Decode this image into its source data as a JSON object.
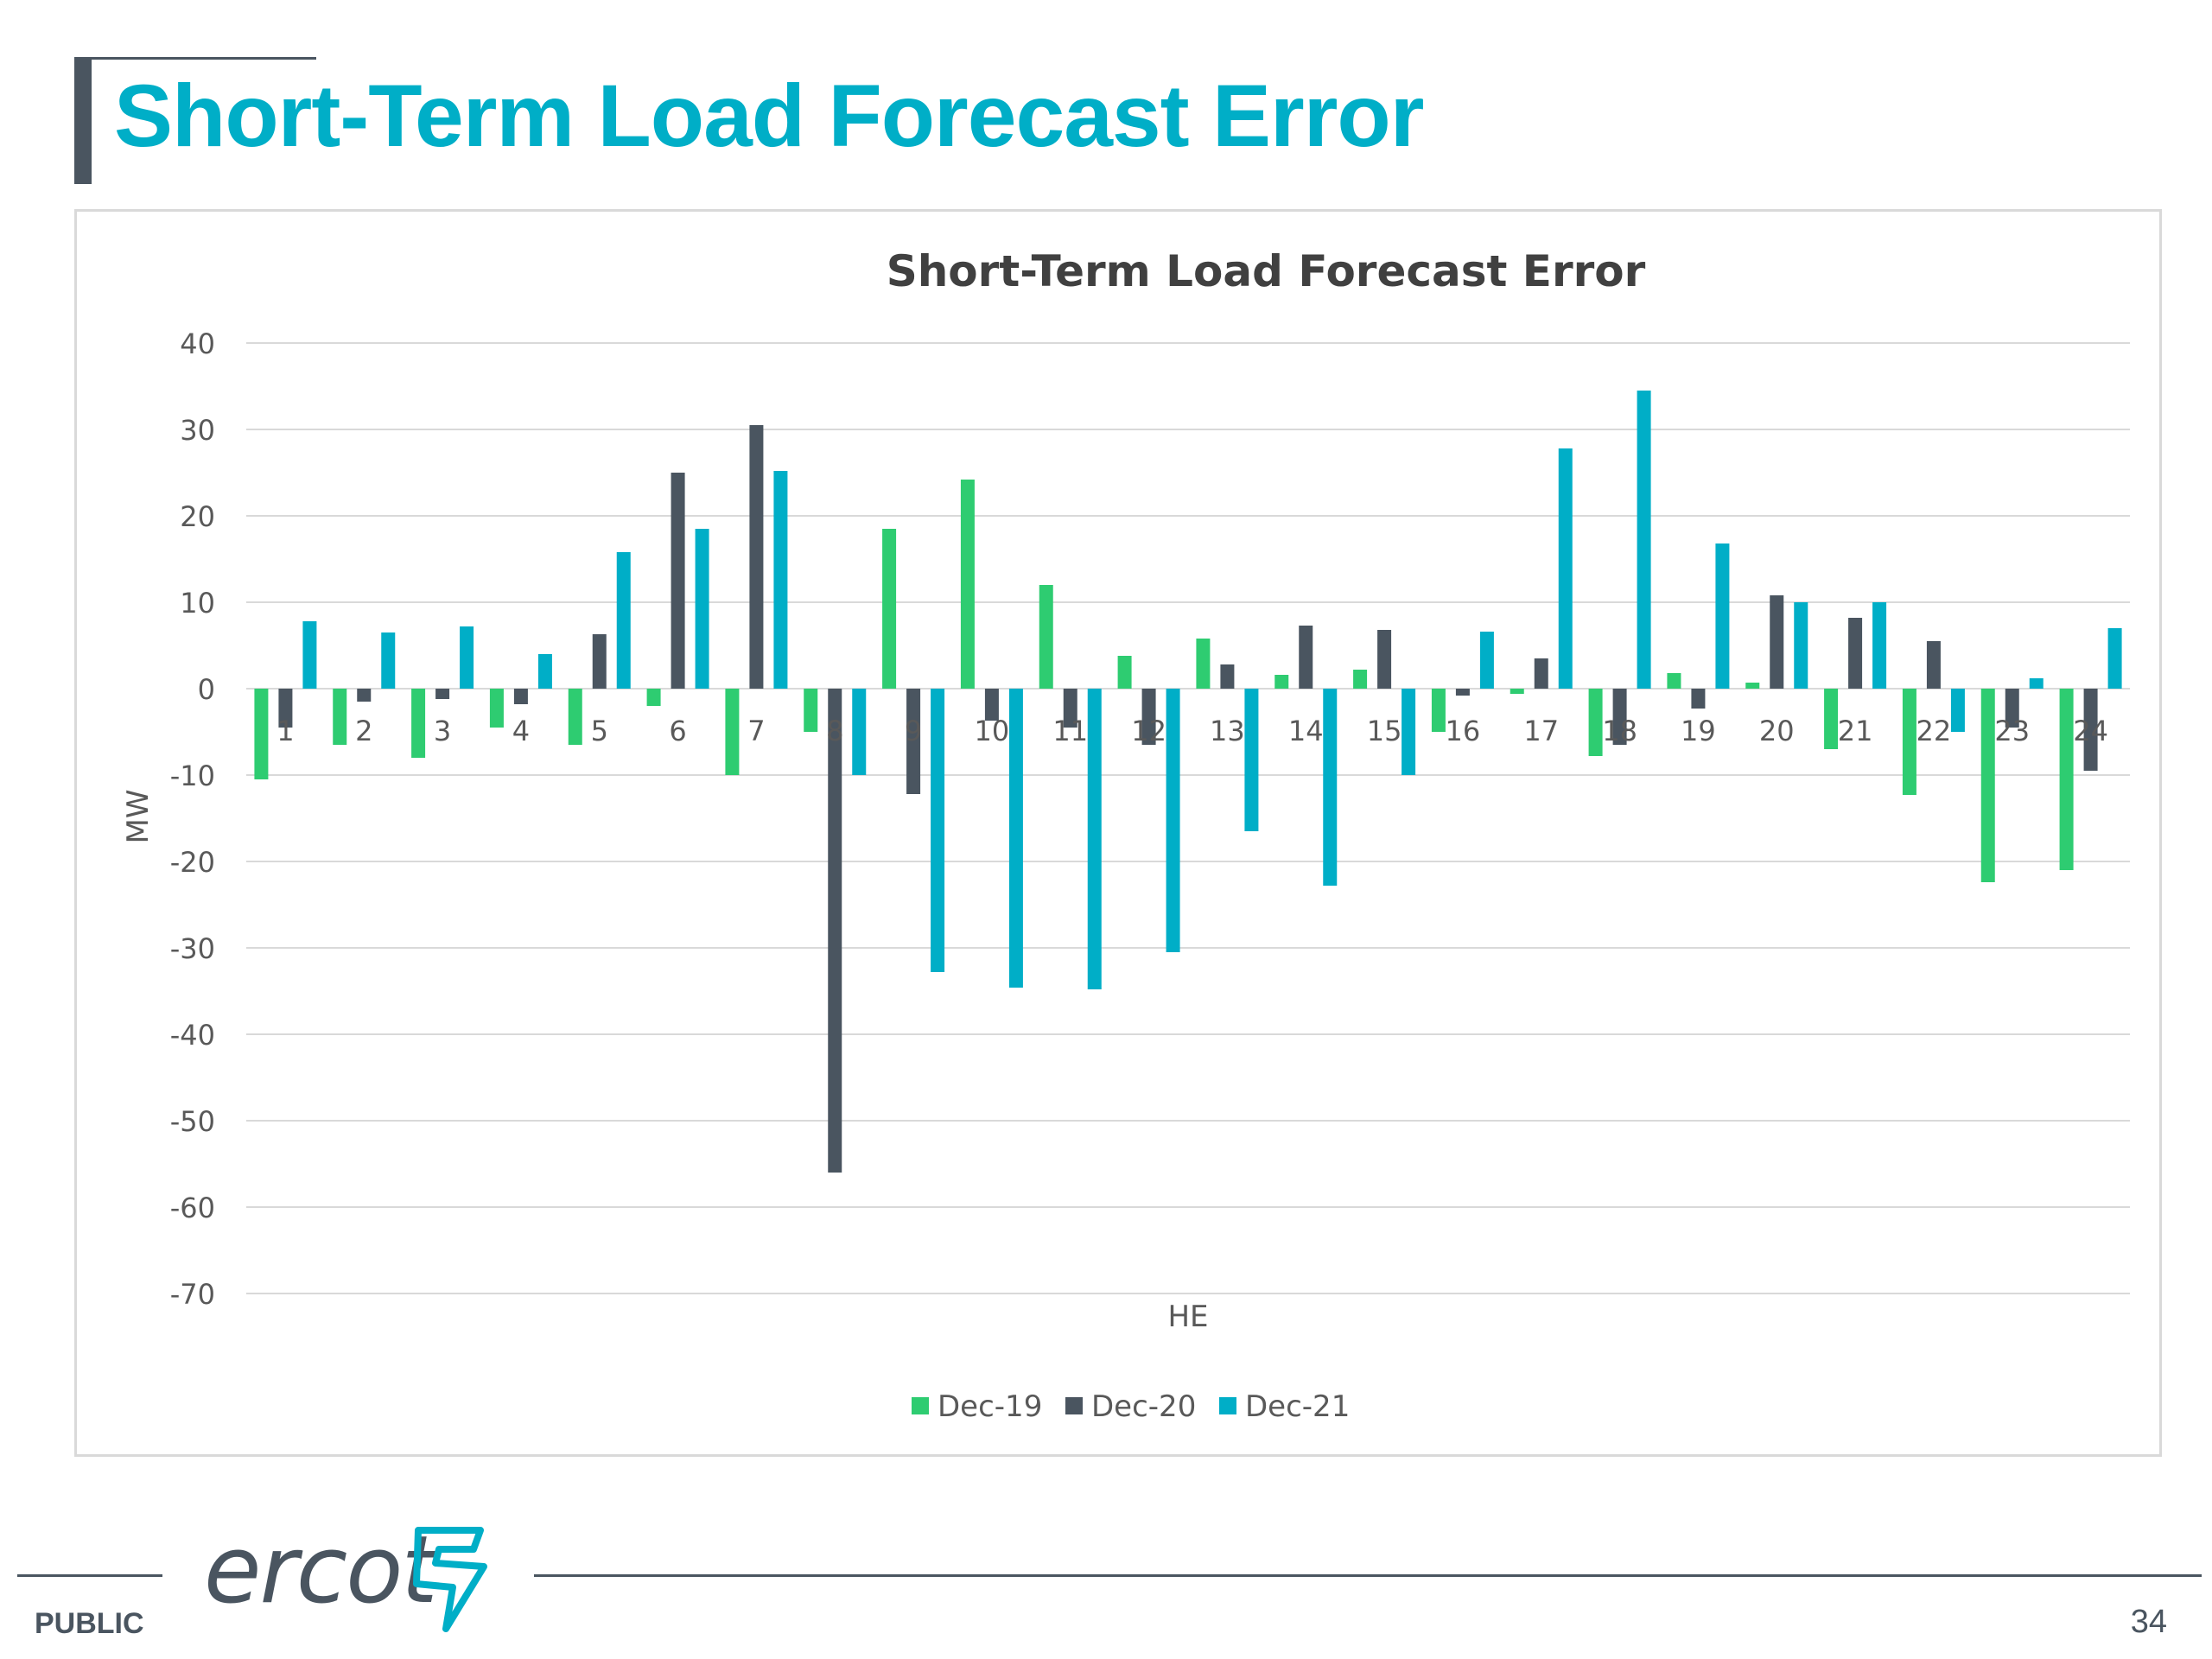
{
  "slide": {
    "title": "Short-Term Load Forecast Error",
    "footer_label": "PUBLIC",
    "page_number": "34",
    "logo_text": "ercot"
  },
  "chart_data": {
    "type": "bar",
    "title": "Short-Term Load Forecast Error",
    "xlabel": "HE",
    "ylabel": "MW",
    "ylim": [
      -70,
      40
    ],
    "yticks": [
      40,
      30,
      20,
      10,
      0,
      -10,
      -20,
      -30,
      -40,
      -50,
      -60,
      -70
    ],
    "grid": true,
    "legend_position": "bottom",
    "categories": [
      "1",
      "2",
      "3",
      "4",
      "5",
      "6",
      "7",
      "8",
      "9",
      "10",
      "11",
      "12",
      "13",
      "14",
      "15",
      "16",
      "17",
      "18",
      "19",
      "20",
      "21",
      "22",
      "23",
      "24"
    ],
    "series": [
      {
        "name": "Dec-19",
        "color": "#2ecc71",
        "values": [
          -10.5,
          -6.5,
          -8,
          -4.5,
          -6.5,
          -2,
          -10,
          -5,
          18.5,
          24.2,
          12,
          3.8,
          5.8,
          1.6,
          2.2,
          -5,
          -0.6,
          -7.8,
          1.8,
          0.7,
          -7,
          -12.3,
          -22.4,
          -21
        ]
      },
      {
        "name": "Dec-20",
        "color": "#4a5560",
        "values": [
          -4.5,
          -1.5,
          -1.2,
          -1.8,
          6.3,
          25,
          30.5,
          -56,
          -12.2,
          -3.7,
          -4.5,
          -6.5,
          2.8,
          7.3,
          6.8,
          -0.8,
          3.5,
          -6.5,
          -2.3,
          10.8,
          8.2,
          5.5,
          -4.5,
          -9.5
        ]
      },
      {
        "name": "Dec-21",
        "color": "#00aec7",
        "values": [
          7.8,
          6.5,
          7.2,
          4,
          15.8,
          18.5,
          25.2,
          -10,
          -32.8,
          -34.6,
          -34.8,
          -30.5,
          -16.5,
          -22.8,
          -10,
          6.6,
          27.8,
          34.5,
          16.8,
          10,
          10,
          -5,
          1.2,
          7
        ]
      }
    ]
  }
}
